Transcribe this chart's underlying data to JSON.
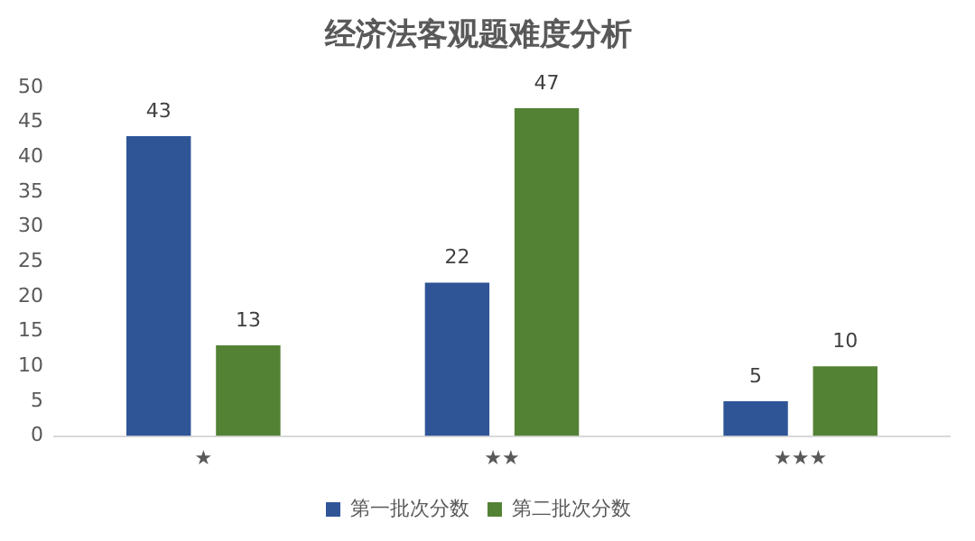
{
  "chart_data": {
    "type": "bar",
    "title": "经济法客观题难度分析",
    "categories": [
      "★",
      "★★",
      "★★★"
    ],
    "series": [
      {
        "name": "第一批次分数",
        "color": "#2f5597",
        "values": [
          43,
          22,
          5
        ]
      },
      {
        "name": "第二批次分数",
        "color": "#548235",
        "values": [
          13,
          47,
          10
        ]
      }
    ],
    "ylim": [
      0,
      50
    ],
    "yticks": [
      0,
      5,
      10,
      15,
      20,
      25,
      30,
      35,
      40,
      45,
      50
    ],
    "grid": false,
    "legend": "bottom",
    "data_labels": true
  }
}
